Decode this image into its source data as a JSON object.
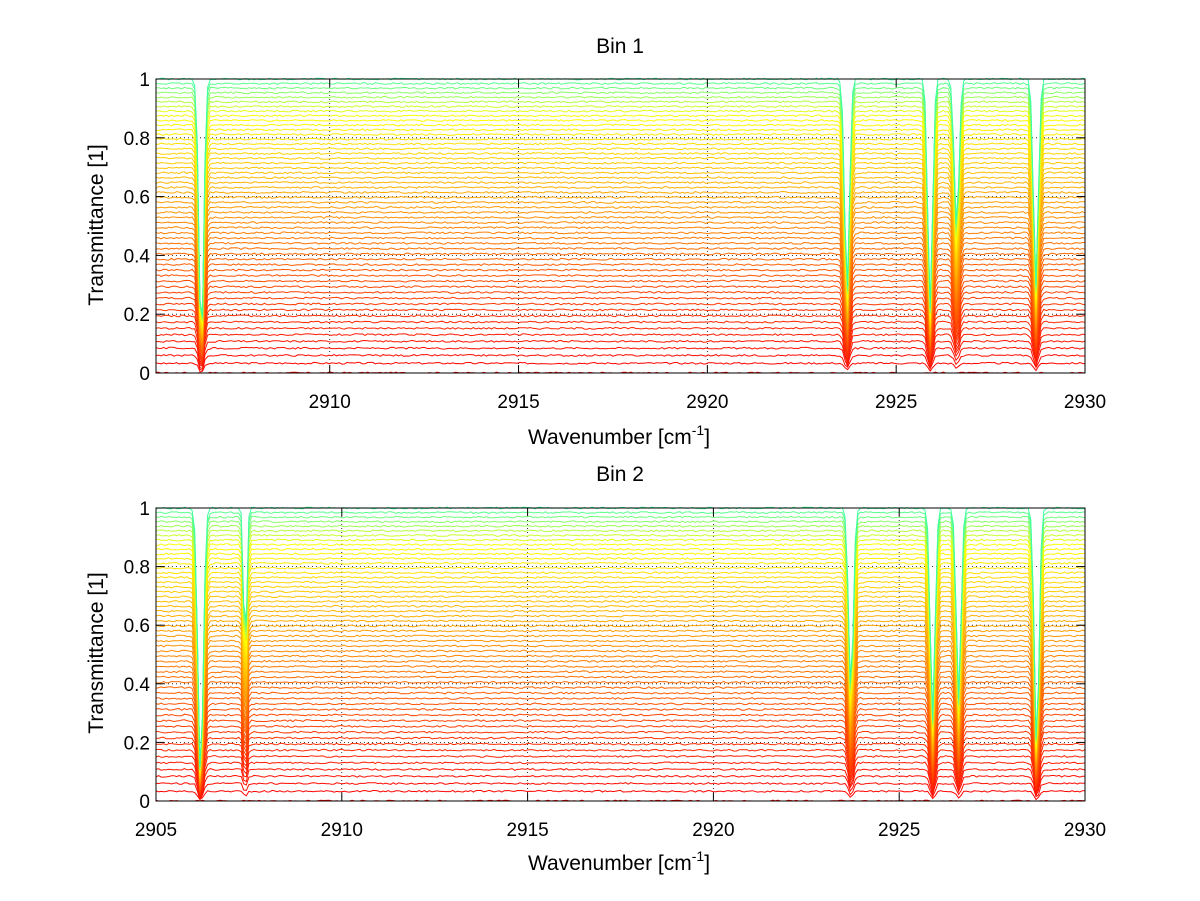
{
  "figure": {
    "background": "#ffffff"
  },
  "chart_data": [
    {
      "type": "line",
      "title": "Bin 1",
      "xlabel": "Wavenumber [cm",
      "xlabel_sup": "-1",
      "xlabel_end": "]",
      "ylabel": "Transmittance [1]",
      "xlim": [
        2905.4,
        2930
      ],
      "ylim": [
        0,
        1
      ],
      "xticks": [
        "2910",
        "2915",
        "2920",
        "2925",
        "2930"
      ],
      "yticks": [
        "0",
        "0.2",
        "0.4",
        "0.6",
        "0.8",
        "1"
      ],
      "grid": true,
      "colormap": "autumn-to-green",
      "series_count": 56,
      "series_top_level_range": [
        0.0,
        1.0
      ],
      "absorption_lines": [
        {
          "x": 2906.6,
          "relative_depth": 0.9,
          "width": 0.09
        },
        {
          "x": 2923.7,
          "relative_depth": 0.72,
          "width": 0.09
        },
        {
          "x": 2925.9,
          "relative_depth": 0.78,
          "width": 0.09
        },
        {
          "x": 2926.6,
          "relative_depth": 0.5,
          "width": 0.09
        },
        {
          "x": 2928.7,
          "relative_depth": 0.7,
          "width": 0.09
        }
      ]
    },
    {
      "type": "line",
      "title": "Bin 2",
      "xlabel": "Wavenumber [cm",
      "xlabel_sup": "-1",
      "xlabel_end": "]",
      "ylabel": "Transmittance [1]",
      "xlim": [
        2905,
        2930
      ],
      "ylim": [
        0,
        1
      ],
      "xticks": [
        "2905",
        "2910",
        "2915",
        "2920",
        "2925",
        "2930"
      ],
      "yticks": [
        "0",
        "0.2",
        "0.4",
        "0.6",
        "0.8",
        "1"
      ],
      "grid": true,
      "colormap": "autumn-to-green",
      "series_count": 56,
      "series_top_level_range": [
        0.0,
        1.0
      ],
      "absorption_lines": [
        {
          "x": 2906.2,
          "relative_depth": 0.92,
          "width": 0.1
        },
        {
          "x": 2907.4,
          "relative_depth": 0.5,
          "width": 0.06
        },
        {
          "x": 2923.7,
          "relative_depth": 0.62,
          "width": 0.09
        },
        {
          "x": 2925.9,
          "relative_depth": 0.72,
          "width": 0.09
        },
        {
          "x": 2926.6,
          "relative_depth": 0.65,
          "width": 0.09
        },
        {
          "x": 2928.7,
          "relative_depth": 0.82,
          "width": 0.09
        }
      ]
    }
  ]
}
